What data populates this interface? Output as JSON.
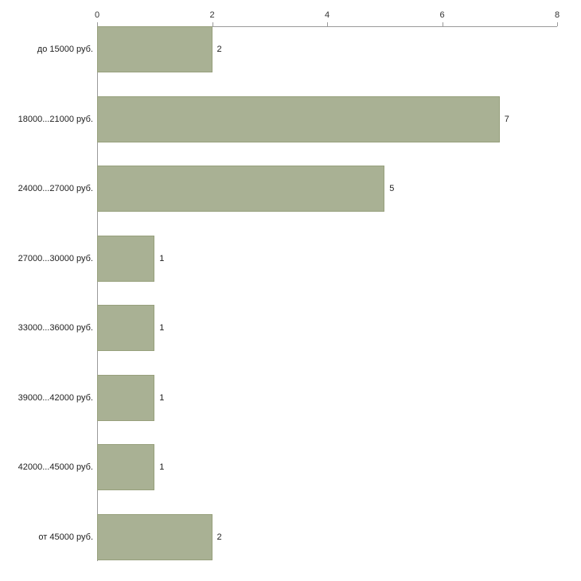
{
  "chart_data": {
    "type": "bar",
    "orientation": "horizontal",
    "title": "",
    "xlabel": "",
    "ylabel": "",
    "categories": [
      "до 15000 руб.",
      "18000...21000 руб.",
      "24000...27000 руб.",
      "27000...30000 руб.",
      "33000...36000 руб.",
      "39000...42000 руб.",
      "42000...45000 руб.",
      "от 45000 руб."
    ],
    "values": [
      2,
      7,
      5,
      1,
      1,
      1,
      1,
      2
    ],
    "xlim": [
      0,
      8
    ],
    "xticks": [
      0,
      2,
      4,
      6,
      8
    ],
    "grid": false,
    "legend": false,
    "value_labels": true,
    "bar_color": "#a9b194",
    "bar_border_color": "#97a07c",
    "axis_color": "#9a9a9a",
    "text_color": "#222222"
  }
}
